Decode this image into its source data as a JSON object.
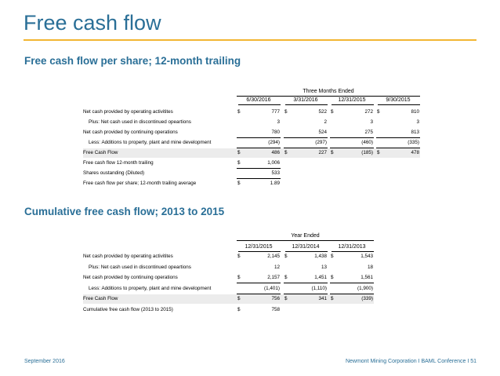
{
  "page": {
    "title": "Free cash flow",
    "footer_left": "September 2016",
    "footer_right": "Newmont Mining Corporation   I  BAML Conference I  51"
  },
  "section1": {
    "title": "Free cash flow per share; 12-month trailing",
    "group_label": "Three Months Ended",
    "columns": [
      "6/30/2016",
      "3/31/2016",
      "12/31/2015",
      "9/30/2015"
    ],
    "rows": [
      {
        "label": "Net cash provided by operating activitites",
        "cells": [
          {
            "d": "$",
            "v": "777"
          },
          {
            "d": "$",
            "v": "522"
          },
          {
            "d": "$",
            "v": "272"
          },
          {
            "d": "$",
            "v": "810"
          }
        ]
      },
      {
        "label": "Plus: Net cash used in discontinued opeartions",
        "cells": [
          {
            "d": "",
            "v": "3"
          },
          {
            "d": "",
            "v": "2"
          },
          {
            "d": "",
            "v": "3"
          },
          {
            "d": "",
            "v": "3"
          }
        ]
      },
      {
        "label": "Net cash provided by continuing operations",
        "cells": [
          {
            "d": "",
            "v": "780"
          },
          {
            "d": "",
            "v": "524"
          },
          {
            "d": "",
            "v": "275"
          },
          {
            "d": "",
            "v": "813"
          }
        ]
      },
      {
        "label": "Less: Additions to property, plant and mine development",
        "cells": [
          {
            "d": "",
            "v": "(294)"
          },
          {
            "d": "",
            "v": "(297)"
          },
          {
            "d": "",
            "v": "(460)"
          },
          {
            "d": "",
            "v": "(335)"
          }
        ]
      },
      {
        "label": "Free Cash Flow",
        "cells": [
          {
            "d": "$",
            "v": "486"
          },
          {
            "d": "$",
            "v": "227"
          },
          {
            "d": "$",
            "v": "(185)"
          },
          {
            "d": "$",
            "v": "478"
          }
        ]
      },
      {
        "label": "Free cash flow  12-month trailing",
        "cells": [
          {
            "d": "$",
            "v": "1,006"
          }
        ]
      },
      {
        "label": "Shares oustanding (Diluted)",
        "cells": [
          {
            "d": "",
            "v": "533"
          }
        ]
      },
      {
        "label": "Free cash flow  per share; 12-month trailing average",
        "cells": [
          {
            "d": "$",
            "v": "1.89"
          }
        ]
      }
    ]
  },
  "section2": {
    "title": "Cumulative free cash flow; 2013 to 2015",
    "group_label": "Year Ended",
    "columns": [
      "12/31/2015",
      "12/31/2014",
      "12/31/2013"
    ],
    "rows": [
      {
        "label": "Net cash provided by operating activitites",
        "cells": [
          {
            "d": "$",
            "v": "2,145"
          },
          {
            "d": "$",
            "v": "1,438"
          },
          {
            "d": "$",
            "v": "1,543"
          }
        ]
      },
      {
        "label": "Plus: Net cash used in discontinued opeartions",
        "cells": [
          {
            "d": "",
            "v": "12"
          },
          {
            "d": "",
            "v": "13"
          },
          {
            "d": "",
            "v": "18"
          }
        ]
      },
      {
        "label": "Net cash provided by continuing operations",
        "cells": [
          {
            "d": "$",
            "v": "2,157"
          },
          {
            "d": "$",
            "v": "1,451"
          },
          {
            "d": "$",
            "v": "1,561"
          }
        ]
      },
      {
        "label": "Less: Additions to property, plant and mine development",
        "cells": [
          {
            "d": "",
            "v": "(1,401)"
          },
          {
            "d": "",
            "v": "(1,110)"
          },
          {
            "d": "",
            "v": "(1,900)"
          }
        ]
      },
      {
        "label": "Free Cash Flow",
        "cells": [
          {
            "d": "$",
            "v": "756"
          },
          {
            "d": "$",
            "v": "341"
          },
          {
            "d": "$",
            "v": "(339)"
          }
        ]
      },
      {
        "label": "Cumulative free cash flow  (2013 to 2015)",
        "cells": [
          {
            "d": "$",
            "v": "758"
          }
        ]
      }
    ]
  }
}
